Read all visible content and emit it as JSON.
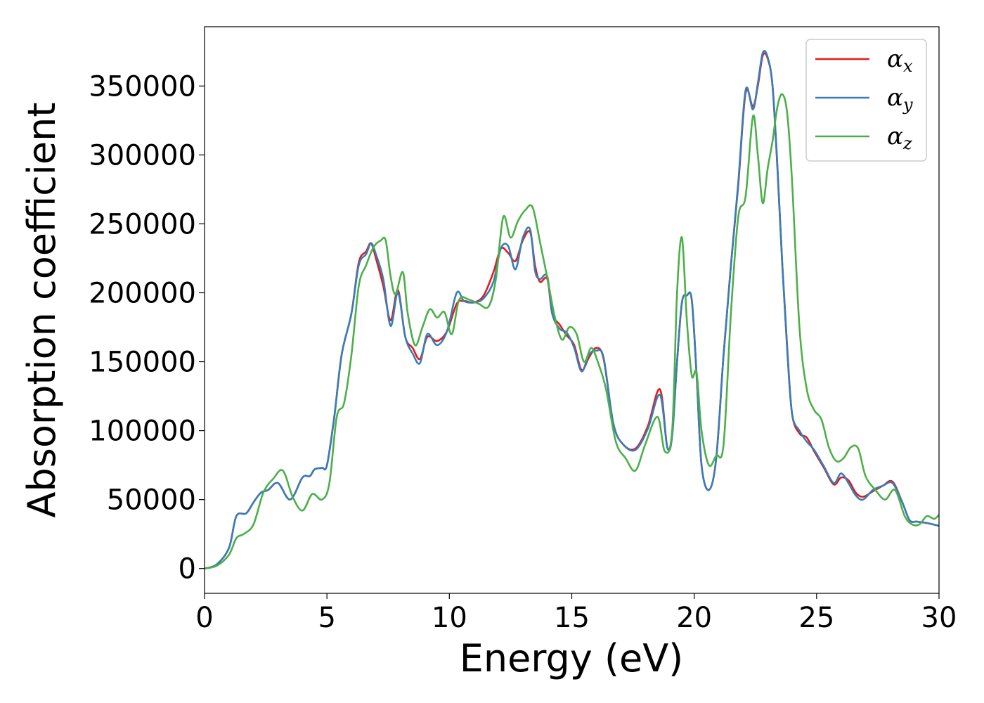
{
  "chart_data": {
    "type": "line",
    "xlabel": "Energy (eV)",
    "ylabel": "Absorption coefficient",
    "xlim": [
      0,
      30
    ],
    "ylim": [
      -18000,
      393000
    ],
    "xticks": [
      "0",
      "5",
      "10",
      "15",
      "20",
      "25",
      "30"
    ],
    "yticks": [
      "0",
      "50000",
      "100000",
      "150000",
      "200000",
      "250000",
      "300000",
      "350000"
    ],
    "grid": false,
    "legend_position": "top-right",
    "series": [
      {
        "name": "α_x",
        "legend_base": "α",
        "legend_sub": "x",
        "color": "#e41a1c",
        "x": [
          0,
          0.5,
          1,
          1.3,
          1.7,
          2,
          2.3,
          2.6,
          3,
          3.5,
          4,
          4.3,
          4.5,
          4.8,
          5,
          5.3,
          5.6,
          6,
          6.3,
          6.6,
          6.8,
          7,
          7.3,
          7.6,
          7.9,
          8.2,
          8.5,
          8.8,
          9.1,
          9.5,
          9.9,
          10.3,
          10.6,
          11,
          11.4,
          11.8,
          12.1,
          12.4,
          12.7,
          13,
          13.3,
          13.5,
          13.7,
          14,
          14.2,
          14.5,
          14.8,
          15.1,
          15.4,
          15.7,
          16,
          16.3,
          16.7,
          17.1,
          17.6,
          18.1,
          18.6,
          18.9,
          19.1,
          19.3,
          19.5,
          19.7,
          19.9,
          20.1,
          20.3,
          20.6,
          20.9,
          21.2,
          21.5,
          21.8,
          22.1,
          22.4,
          22.6,
          22.8,
          23,
          23.2,
          23.4,
          23.6,
          23.8,
          24,
          24.3,
          24.6,
          24.9,
          25.3,
          25.7,
          26,
          26.3,
          26.6,
          26.9,
          27.3,
          27.7,
          28.1,
          28.5,
          28.8,
          29.1,
          29.5,
          30
        ],
        "y": [
          0,
          3000,
          15000,
          38000,
          40000,
          48000,
          55000,
          57000,
          62000,
          50000,
          66000,
          67000,
          72000,
          73000,
          75000,
          110000,
          155000,
          185000,
          222000,
          230000,
          236000,
          225000,
          205000,
          180000,
          202000,
          168000,
          160000,
          152000,
          168000,
          165000,
          172000,
          192000,
          194000,
          193000,
          198000,
          215000,
          232000,
          229000,
          223000,
          238000,
          244000,
          220000,
          208000,
          210000,
          185000,
          177000,
          169000,
          162000,
          144000,
          153000,
          160000,
          152000,
          105000,
          90000,
          87000,
          103000,
          130000,
          88000,
          98000,
          150000,
          193000,
          198000,
          195000,
          140000,
          75000,
          57000,
          80000,
          155000,
          220000,
          278000,
          345000,
          335000,
          350000,
          372000,
          370000,
          350000,
          290000,
          220000,
          160000,
          112000,
          98000,
          95000,
          85000,
          73000,
          61000,
          66000,
          64000,
          55000,
          52000,
          56000,
          60000,
          63000,
          48000,
          35000,
          34000,
          33000,
          31000
        ]
      },
      {
        "name": "α_y",
        "legend_base": "α",
        "legend_sub": "y",
        "color": "#377eb8",
        "x": [
          0,
          0.5,
          1,
          1.3,
          1.7,
          2,
          2.3,
          2.6,
          3,
          3.5,
          4,
          4.3,
          4.5,
          4.8,
          5,
          5.3,
          5.6,
          6,
          6.3,
          6.6,
          6.8,
          7,
          7.3,
          7.6,
          7.9,
          8.2,
          8.5,
          8.8,
          9.1,
          9.5,
          9.9,
          10.3,
          10.6,
          11,
          11.4,
          11.8,
          12.1,
          12.4,
          12.7,
          13,
          13.3,
          13.5,
          13.7,
          14,
          14.2,
          14.5,
          14.8,
          15.1,
          15.4,
          15.7,
          16,
          16.3,
          16.7,
          17.1,
          17.6,
          18.1,
          18.6,
          18.9,
          19.1,
          19.3,
          19.5,
          19.7,
          19.9,
          20.1,
          20.3,
          20.6,
          20.9,
          21.2,
          21.5,
          21.8,
          22.1,
          22.4,
          22.6,
          22.8,
          23,
          23.2,
          23.4,
          23.6,
          23.8,
          24,
          24.3,
          24.6,
          24.9,
          25.3,
          25.7,
          26,
          26.3,
          26.6,
          26.9,
          27.3,
          27.7,
          28.1,
          28.5,
          28.8,
          29.1,
          29.5,
          30
        ],
        "y": [
          0,
          3000,
          15000,
          38000,
          40000,
          48000,
          55000,
          57000,
          62000,
          50000,
          66000,
          67000,
          72000,
          73000,
          75000,
          110000,
          155000,
          185000,
          220000,
          228000,
          236000,
          228000,
          210000,
          176000,
          200000,
          168000,
          156000,
          149000,
          170000,
          162000,
          172000,
          200000,
          194000,
          193000,
          196000,
          208000,
          232000,
          234000,
          217000,
          240000,
          246000,
          216000,
          210000,
          212000,
          185000,
          174000,
          171000,
          160000,
          143000,
          155000,
          158000,
          153000,
          105000,
          90000,
          86000,
          101000,
          126000,
          88000,
          96000,
          150000,
          193000,
          198000,
          195000,
          140000,
          75000,
          57000,
          80000,
          155000,
          220000,
          280000,
          347000,
          333000,
          352000,
          374000,
          371000,
          350000,
          292000,
          220000,
          158000,
          112000,
          100000,
          92000,
          86000,
          74000,
          62000,
          69000,
          62000,
          53000,
          50000,
          57000,
          60000,
          62000,
          48000,
          35000,
          34000,
          33000,
          31000
        ]
      },
      {
        "name": "α_z",
        "legend_base": "α",
        "legend_sub": "z",
        "color": "#4daf4a",
        "x": [
          0,
          0.5,
          1,
          1.3,
          1.6,
          2,
          2.4,
          2.8,
          3.2,
          3.6,
          4,
          4.4,
          4.8,
          5.1,
          5.4,
          5.7,
          6,
          6.3,
          6.6,
          6.9,
          7.2,
          7.4,
          7.6,
          7.8,
          8.1,
          8.3,
          8.6,
          8.9,
          9.2,
          9.5,
          9.8,
          10.1,
          10.4,
          10.8,
          11.2,
          11.6,
          11.9,
          12.2,
          12.5,
          12.8,
          13.1,
          13.4,
          13.7,
          14,
          14.3,
          14.6,
          14.9,
          15.2,
          15.5,
          15.8,
          16.1,
          16.4,
          16.8,
          17.2,
          17.6,
          18,
          18.5,
          18.8,
          19.1,
          19.3,
          19.5,
          19.7,
          19.9,
          20.1,
          20.3,
          20.6,
          20.9,
          21.2,
          21.5,
          21.8,
          22.1,
          22.4,
          22.6,
          22.8,
          23,
          23.2,
          23.4,
          23.6,
          23.8,
          24,
          24.3,
          24.6,
          24.9,
          25.2,
          25.5,
          25.8,
          26.1,
          26.4,
          26.7,
          27,
          27.4,
          27.8,
          28.2,
          28.6,
          28.9,
          29.2,
          29.5,
          29.8,
          30
        ],
        "y": [
          0,
          2000,
          10000,
          22000,
          25000,
          32000,
          55000,
          65000,
          71000,
          52000,
          42000,
          54000,
          50000,
          62000,
          110000,
          120000,
          155000,
          205000,
          220000,
          233000,
          238000,
          238000,
          212000,
          199000,
          215000,
          185000,
          162000,
          175000,
          188000,
          182000,
          186000,
          170000,
          195000,
          195000,
          192000,
          190000,
          210000,
          255000,
          240000,
          252000,
          260000,
          262000,
          237000,
          211000,
          183000,
          166000,
          175000,
          170000,
          150000,
          160000,
          148000,
          130000,
          92000,
          80000,
          71000,
          90000,
          110000,
          85000,
          100000,
          200000,
          240000,
          180000,
          140000,
          142000,
          100000,
          75000,
          82000,
          90000,
          185000,
          255000,
          270000,
          328000,
          300000,
          265000,
          290000,
          310000,
          335000,
          344000,
          330000,
          280000,
          175000,
          130000,
          115000,
          108000,
          88000,
          78000,
          80000,
          88000,
          87000,
          67000,
          57000,
          50000,
          57000,
          38000,
          32000,
          32000,
          38000,
          36000,
          39000
        ]
      }
    ]
  }
}
